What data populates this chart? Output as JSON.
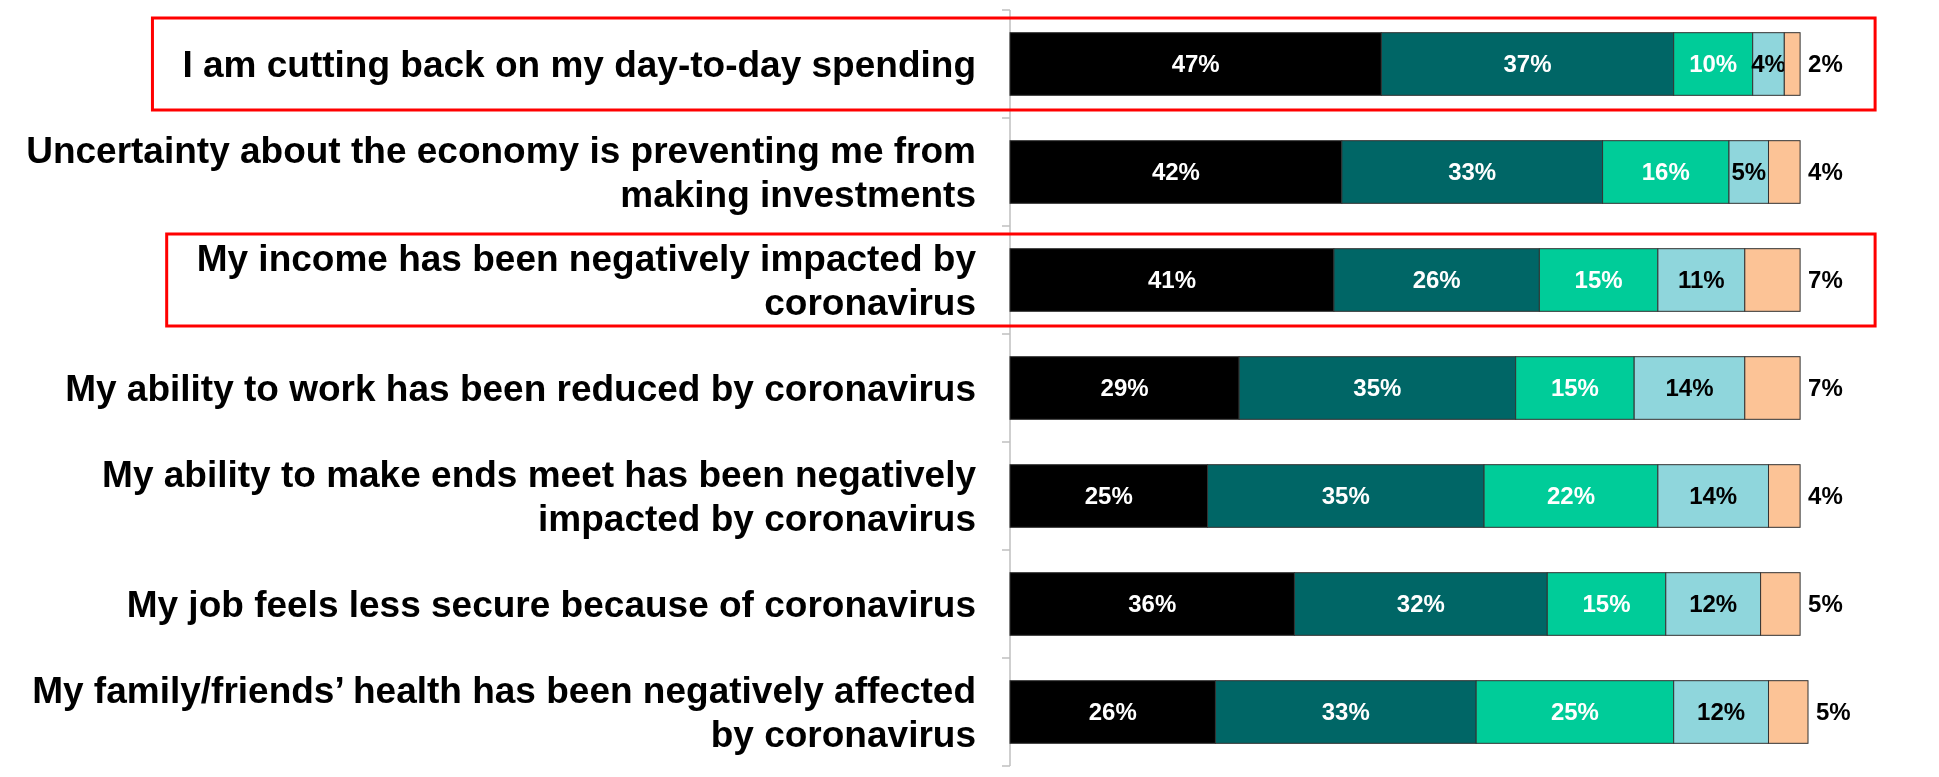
{
  "chart_data": {
    "type": "bar",
    "orientation": "horizontal",
    "stacked": true,
    "categories": [
      "I am cutting back on my day-to-day spending",
      "Uncertainty about the economy is preventing me from making investments",
      "My income has been negatively impacted by coronavirus",
      "My ability to work has been reduced by coronavirus",
      "My ability to make ends meet has been negatively impacted by coronavirus",
      "My job feels less secure because of coronavirus",
      "My family/friends’ health has been negatively affected by coronavirus"
    ],
    "series": [
      {
        "color": "#000000",
        "values": [
          47,
          42,
          41,
          29,
          25,
          36,
          26
        ],
        "value_labels": [
          "47%",
          "42%",
          "41%",
          "29%",
          "25%",
          "36%",
          "26%"
        ]
      },
      {
        "color": "#006666",
        "values": [
          37,
          33,
          26,
          35,
          35,
          32,
          33
        ],
        "value_labels": [
          "37%",
          "33%",
          "26%",
          "35%",
          "35%",
          "32%",
          "33%"
        ]
      },
      {
        "color": "#00cc99",
        "values": [
          10,
          16,
          15,
          15,
          22,
          15,
          25
        ],
        "value_labels": [
          "10%",
          "16%",
          "15%",
          "15%",
          "22%",
          "15%",
          "25%"
        ]
      },
      {
        "color": "#8fd6dc",
        "values": [
          4,
          5,
          11,
          14,
          14,
          12,
          12
        ],
        "value_labels": [
          "4%",
          "5%",
          "11%",
          "14%",
          "14%",
          "12%",
          "12%"
        ]
      },
      {
        "color": "#fcc396",
        "values": [
          2,
          4,
          7,
          7,
          4,
          5,
          5
        ],
        "value_labels": [
          "2%",
          "4%",
          "7%",
          "7%",
          "4%",
          "5%",
          "5%"
        ]
      }
    ]
  }
}
